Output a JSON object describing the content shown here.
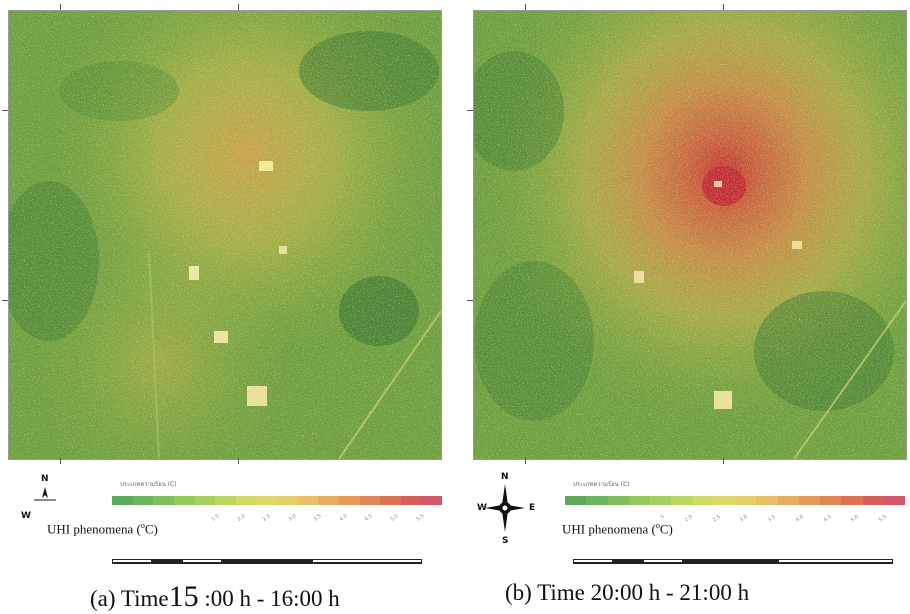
{
  "panels": [
    {
      "caption_letter": "(a) Time",
      "caption_big": "15",
      "caption_rest": " :00 h - 16:00 h",
      "uhi_label_text": "UHI phenomena (",
      "uhi_unit_sup": "o",
      "uhi_unit_end": "C)",
      "compass": {
        "n": "N",
        "w": "W"
      }
    },
    {
      "caption_letter": "(b) Time 20:00 h - 21:00 h",
      "uhi_label_text": "UHI phenomena (",
      "uhi_unit_sup": "o",
      "uhi_unit_end": "C)",
      "compass": {
        "n": "N",
        "w": "W",
        "e": "E",
        "s": "S"
      }
    }
  ],
  "legend_colors": [
    "#5aa85a",
    "#6cb45c",
    "#7fbe5c",
    "#93c85c",
    "#a8d05e",
    "#bcd862",
    "#cfdc66",
    "#dcd96a",
    "#e3cf6a",
    "#e6bf66",
    "#e6ad60",
    "#e49a5a",
    "#e08656",
    "#dc7254",
    "#d85e58",
    "#d4566a"
  ],
  "colors": {
    "cool": "#4e8f3a",
    "mid": "#a8c24a",
    "warm": "#d8b050",
    "hot": "#c4453a"
  }
}
